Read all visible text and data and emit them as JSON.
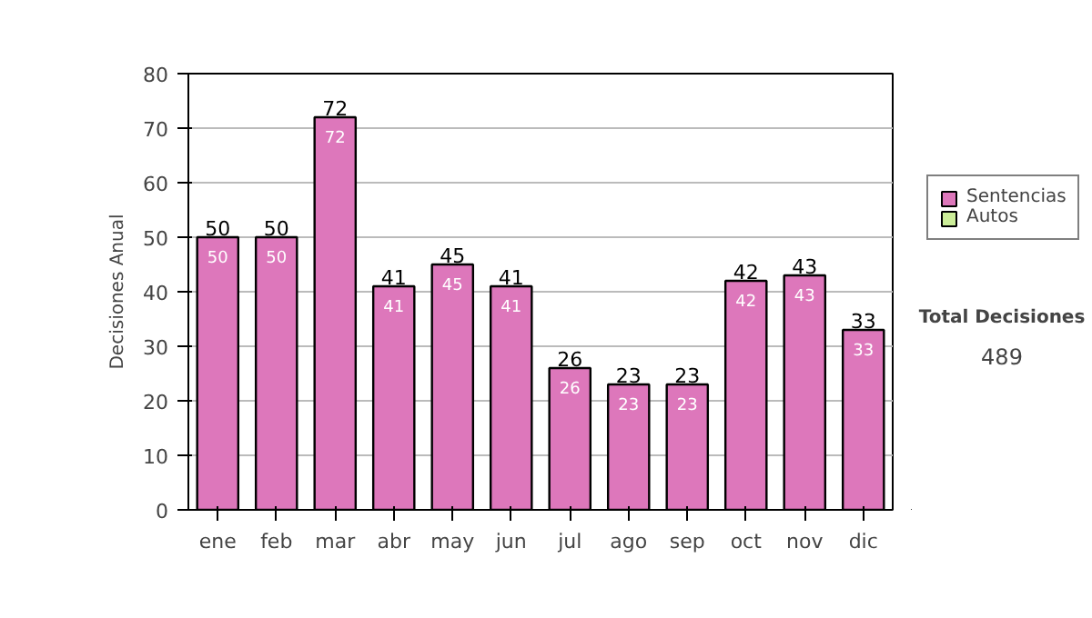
{
  "chart_data": {
    "type": "bar",
    "stacked": true,
    "ylabel": "Decisiones Anual",
    "categories": [
      "ene",
      "feb",
      "mar",
      "abr",
      "may",
      "jun",
      "jul",
      "ago",
      "sep",
      "oct",
      "nov",
      "dic"
    ],
    "series": [
      {
        "name": "Sentencias",
        "color": "#dd77bb",
        "values": [
          50,
          50,
          72,
          41,
          45,
          41,
          26,
          23,
          23,
          42,
          43,
          33
        ],
        "value_labels": [
          "50",
          "50",
          "72",
          "41",
          "45",
          "41",
          "26",
          "23",
          "23",
          "42",
          "43",
          "33"
        ]
      },
      {
        "name": "Autos",
        "color": "#ccee99",
        "values": [
          0,
          0,
          0,
          0,
          0,
          0,
          0,
          0,
          0,
          0,
          0,
          0
        ]
      }
    ],
    "ylim": [
      0,
      80
    ],
    "yticks": [
      0,
      10,
      20,
      30,
      40,
      50,
      60,
      70,
      80
    ],
    "grid": "y",
    "legend": "right",
    "totals": [
      "50",
      "50",
      "72",
      "41",
      "45",
      "41",
      "26",
      "23",
      "23",
      "42",
      "43",
      "33"
    ],
    "annotations": [
      "Total Decisiones",
      "489"
    ]
  }
}
